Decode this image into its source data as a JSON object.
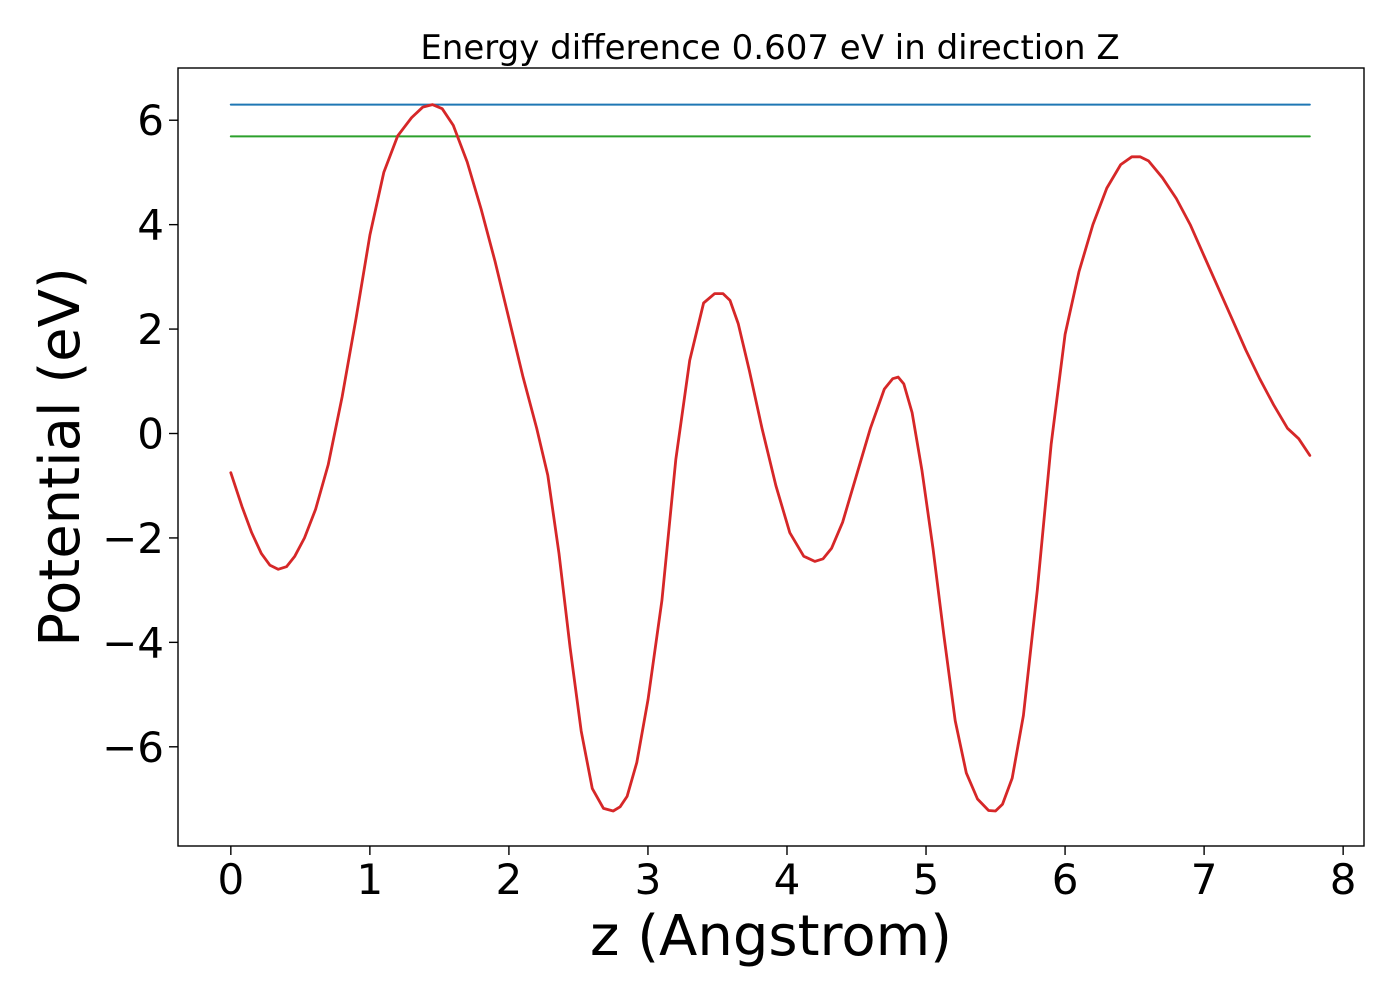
{
  "chart_data": {
    "type": "line",
    "title": "Energy difference 0.607 eV in direction Z",
    "xlabel": "z (Angstrom)",
    "ylabel": "Potential (eV)",
    "xlim": [
      -0.38,
      8.15
    ],
    "ylim": [
      -7.9,
      7.0
    ],
    "xticks": [
      0,
      1,
      2,
      3,
      4,
      5,
      6,
      7,
      8
    ],
    "xtick_labels": [
      "0",
      "1",
      "2",
      "3",
      "4",
      "5",
      "6",
      "7",
      "8"
    ],
    "yticks": [
      -6,
      -4,
      -2,
      0,
      2,
      4,
      6
    ],
    "ytick_labels": [
      "−6",
      "−4",
      "−2",
      "0",
      "2",
      "4",
      "6"
    ],
    "grid": false,
    "series": [
      {
        "color": "#1f77b4",
        "x": [
          0,
          7.76
        ],
        "y": [
          6.3,
          6.3
        ]
      },
      {
        "color": "#2ca02c",
        "x": [
          0,
          7.76
        ],
        "y": [
          5.69,
          5.69
        ]
      },
      {
        "color": "#d62728",
        "x": [
          0,
          0.08,
          0.15,
          0.22,
          0.28,
          0.34,
          0.4,
          0.46,
          0.53,
          0.61,
          0.7,
          0.8,
          0.9,
          1.0,
          1.1,
          1.2,
          1.3,
          1.38,
          1.45,
          1.52,
          1.6,
          1.7,
          1.8,
          1.9,
          2.0,
          2.1,
          2.2,
          2.28,
          2.36,
          2.44,
          2.52,
          2.6,
          2.68,
          2.75,
          2.8,
          2.85,
          2.92,
          3.0,
          3.1,
          3.2,
          3.3,
          3.4,
          3.48,
          3.54,
          3.59,
          3.65,
          3.73,
          3.82,
          3.92,
          4.02,
          4.12,
          4.2,
          4.26,
          4.32,
          4.4,
          4.5,
          4.6,
          4.7,
          4.76,
          4.8,
          4.84,
          4.9,
          4.97,
          5.05,
          5.13,
          5.21,
          5.29,
          5.37,
          5.45,
          5.5,
          5.55,
          5.62,
          5.7,
          5.8,
          5.9,
          6.0,
          6.1,
          6.2,
          6.3,
          6.4,
          6.48,
          6.54,
          6.6,
          6.7,
          6.8,
          6.9,
          7.0,
          7.1,
          7.2,
          7.3,
          7.4,
          7.5,
          7.6,
          7.68,
          7.76
        ],
        "y": [
          -0.75,
          -1.4,
          -1.9,
          -2.3,
          -2.52,
          -2.6,
          -2.55,
          -2.35,
          -2.0,
          -1.45,
          -0.6,
          0.7,
          2.2,
          3.8,
          5.0,
          5.7,
          6.05,
          6.25,
          6.3,
          6.22,
          5.9,
          5.2,
          4.3,
          3.3,
          2.2,
          1.1,
          0.1,
          -0.8,
          -2.3,
          -4.1,
          -5.7,
          -6.8,
          -7.18,
          -7.23,
          -7.15,
          -6.95,
          -6.3,
          -5.1,
          -3.2,
          -0.5,
          1.4,
          2.5,
          2.68,
          2.68,
          2.55,
          2.1,
          1.2,
          0.1,
          -1.0,
          -1.9,
          -2.35,
          -2.45,
          -2.4,
          -2.2,
          -1.7,
          -0.8,
          0.1,
          0.85,
          1.05,
          1.08,
          0.95,
          0.4,
          -0.7,
          -2.2,
          -3.9,
          -5.5,
          -6.5,
          -7.0,
          -7.22,
          -7.23,
          -7.1,
          -6.6,
          -5.4,
          -3.0,
          -0.2,
          1.9,
          3.1,
          4.0,
          4.7,
          5.15,
          5.3,
          5.3,
          5.22,
          4.9,
          4.5,
          4.0,
          3.4,
          2.8,
          2.2,
          1.6,
          1.05,
          0.55,
          0.1,
          -0.1,
          -0.42
        ]
      }
    ]
  }
}
